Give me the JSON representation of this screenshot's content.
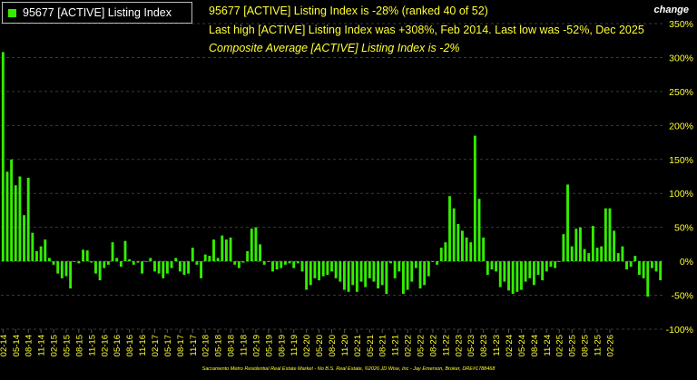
{
  "legend": {
    "label": "95677 [ACTIVE] Listing Index",
    "color": "#33ee00"
  },
  "headlines": {
    "line1": "95677 [ACTIVE] Listing Index is -28% (ranked 40 of 52)",
    "line2": "Last high [ACTIVE] Listing Index was +308%, Feb 2014. Last low was -52%, Dec 2025",
    "line3": "Composite Average [ACTIVE] Listing Index is -2%"
  },
  "axis_title": "change",
  "footer": "Sacramento Metro Residential Real Estate Market - No B.S. Real Estate, ©2026 JD Wise, Inc - Jay Emerson, Broker, DRE#1788468",
  "colors": {
    "bar": "#33ee00",
    "text_yellow": "#ffff33",
    "grid": "#3a3a3a",
    "background": "#000000"
  },
  "chart_data": {
    "type": "bar",
    "series": [
      {
        "name": "95677 [ACTIVE] Listing Index",
        "values": [
          308,
          132,
          150,
          112,
          125,
          68,
          123,
          42,
          15,
          22,
          32,
          5,
          -5,
          -18,
          -25,
          -22,
          -40,
          0,
          -3,
          17,
          16,
          -2,
          -18,
          -28,
          -10,
          -5,
          28,
          5,
          -8,
          30,
          3,
          -5,
          -2,
          -18,
          0,
          5,
          -15,
          -18,
          -25,
          -18,
          -10,
          5,
          -15,
          -20,
          -18,
          20,
          -5,
          -25,
          10,
          8,
          32,
          5,
          38,
          32,
          35,
          -5,
          -10,
          -2,
          15,
          48,
          50,
          25,
          -5,
          0,
          -15,
          -12,
          -10,
          -5,
          -3,
          -10,
          -3,
          -15,
          -42,
          -35,
          -25,
          -28,
          -22,
          -20,
          -15,
          -25,
          -30,
          -42,
          -45,
          -35,
          -45,
          -30,
          -38,
          -25,
          -30,
          -40,
          -35,
          -48,
          -3,
          -25,
          -15,
          -48,
          -42,
          -30,
          -10,
          -40,
          -35,
          -22,
          0,
          -5,
          20,
          28,
          96,
          78,
          55,
          45,
          35,
          28,
          185,
          92,
          35,
          -20,
          -12,
          -15,
          -38,
          -30,
          -43,
          -48,
          -45,
          -42,
          -30,
          -25,
          -35,
          -20,
          -28,
          -15,
          -8,
          -10,
          0,
          40,
          113,
          22,
          48,
          50,
          18,
          12,
          52,
          20,
          22,
          78,
          78,
          45,
          12,
          22,
          -12,
          -8,
          8,
          -20,
          -25,
          -52,
          -10,
          -15,
          -28
        ],
        "start_month": "2014-02"
      }
    ],
    "x_tick_labels": [
      "02-14",
      "05-14",
      "08-14",
      "11-14",
      "02-15",
      "05-15",
      "08-15",
      "11-15",
      "02-16",
      "05-16",
      "08-16",
      "11-16",
      "02-17",
      "05-17",
      "08-17",
      "11-17",
      "02-18",
      "05-18",
      "08-18",
      "11-18",
      "02-19",
      "05-19",
      "08-19",
      "11-19",
      "02-20",
      "05-20",
      "08-20",
      "11-20",
      "02-21",
      "05-21",
      "08-21",
      "11-21",
      "02-22",
      "05-22",
      "08-22",
      "11-22",
      "02-23",
      "05-23",
      "08-23",
      "11-23",
      "02-24",
      "05-24",
      "08-24",
      "11-24",
      "02-25",
      "05-25",
      "08-25",
      "11-25",
      "02-26"
    ],
    "y_ticks": [
      350,
      300,
      250,
      200,
      150,
      100,
      50,
      0,
      -50,
      -100
    ],
    "y_tick_labels": [
      "350%",
      "300%",
      "250%",
      "200%",
      "150%",
      "100%",
      "50%",
      "0%",
      "-50%",
      "-100%"
    ],
    "ylim": [
      -100,
      350
    ],
    "grid": true,
    "legend_position": "top-left",
    "ylabel": "change",
    "xlabel": "",
    "title": ""
  }
}
